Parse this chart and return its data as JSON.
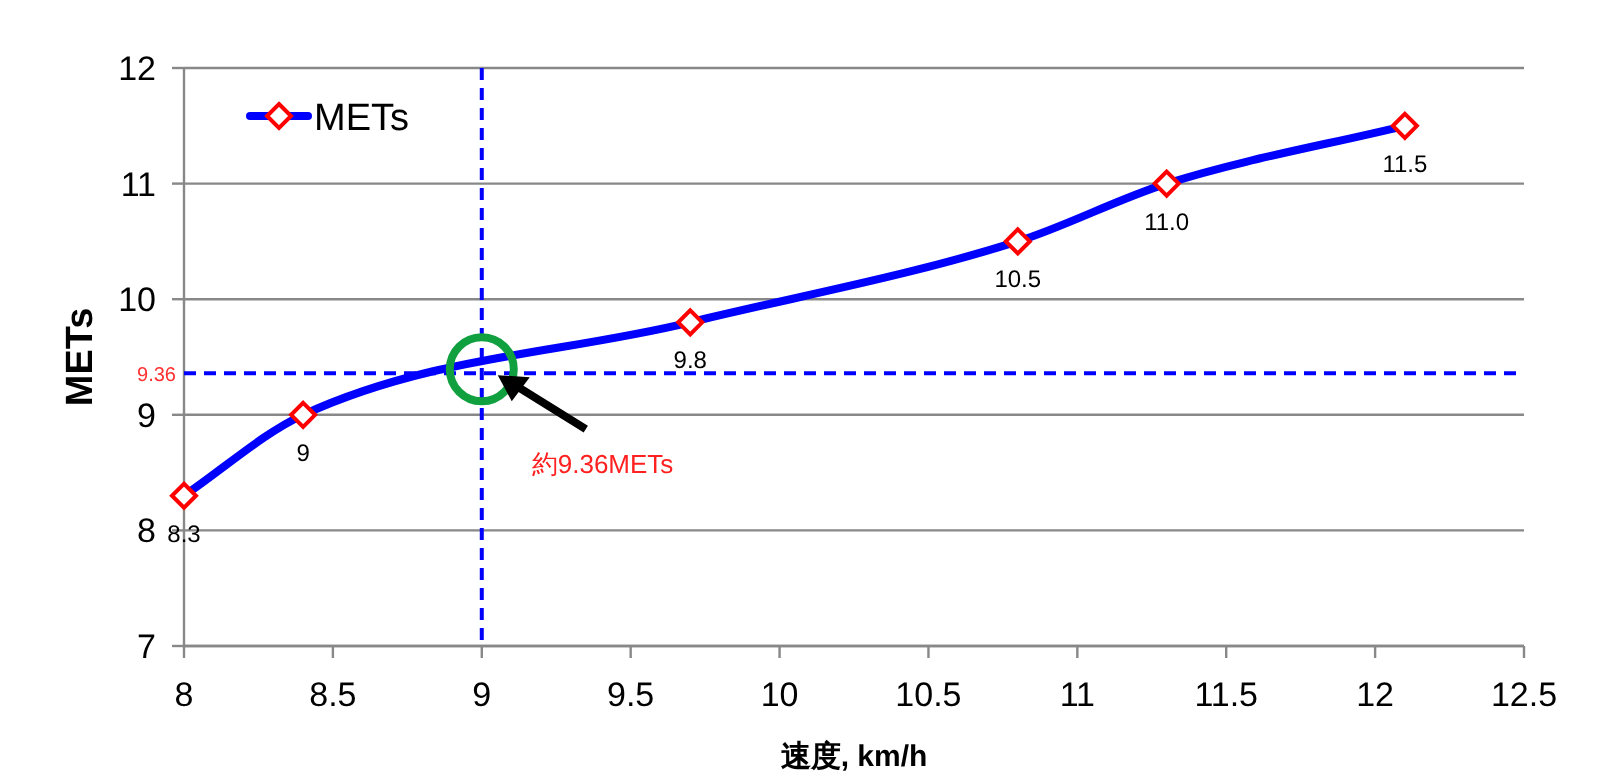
{
  "chart_data": {
    "type": "line",
    "xlabel": "速度, km/h",
    "ylabel": "METs",
    "x": [
      8,
      8.4,
      9.7,
      10.8,
      11.3,
      12.1
    ],
    "series": [
      {
        "name": "METs",
        "color": "#0000ff",
        "values": [
          8.3,
          9,
          9.8,
          10.5,
          11.0,
          11.5
        ],
        "value_labels": [
          "8.3",
          "9",
          "9.8",
          "10.5",
          "11.0",
          "11.5"
        ]
      }
    ],
    "xlim": [
      8,
      12.5
    ],
    "xticks": [
      8,
      8.5,
      9,
      9.5,
      10,
      10.5,
      11,
      11.5,
      12,
      12.5
    ],
    "ylim": [
      7,
      12
    ],
    "yticks": [
      7,
      8,
      9,
      10,
      11,
      12
    ],
    "grid": "y",
    "legend": "top left",
    "marker": "diamond",
    "line_style": "solid",
    "ref_lines": [
      {
        "axis": "x",
        "value": 9,
        "color": "#0000ff",
        "line_style": "dashed"
      },
      {
        "axis": "y",
        "value": 9.36,
        "label": "9.36",
        "color": "#0000ff",
        "line_style": "dashed"
      }
    ],
    "annotations": [
      "約9.36METs"
    ]
  }
}
